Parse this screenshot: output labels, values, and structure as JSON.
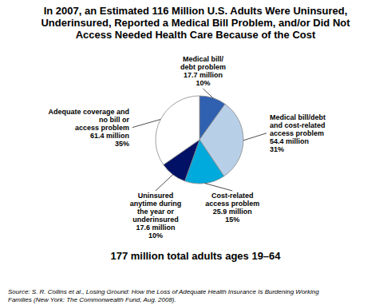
{
  "chart_data": {
    "type": "pie",
    "title": "In 2007, an Estimated 116 Million U.S. Adults Were Uninsured,\nUnderinsured, Reported a Medical Bill Problem, and/or Did Not\nAccess Needed Health Care Because of the Cost",
    "subtitle": "177 million total adults ages 19–64",
    "source": "Source: S. R. Collins et al., Losing Ground: How the Loss of Adequate Health Insurance Is Burdening Working\nFamilies (New York: The Commonwealth Fund, Aug. 2008).",
    "categories": [
      "Medical bill/\ndebt problem\n17.7 million\n10%",
      "Medical bill/debt\nand cost-related\naccess problem\n54.4 million\n31%",
      "Cost-related\naccess problem\n25.9 million\n15%",
      "Uninsured\nanytime during\nthe year or\nunderinsured\n17.6 million\n10%",
      "Adequate coverage and\nno bill or\naccess problem\n61.4 million\n35%"
    ],
    "values": [
      10,
      31,
      15,
      10,
      35
    ],
    "colors": [
      "#3060b0",
      "#b8cfe8",
      "#00aadd",
      "#001166",
      "#ffffff"
    ]
  }
}
